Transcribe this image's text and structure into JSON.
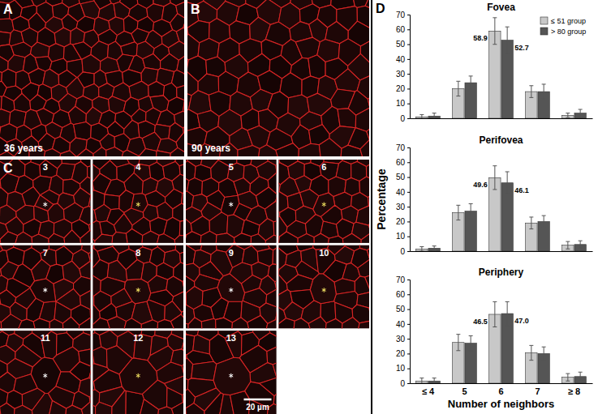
{
  "panels": {
    "A": {
      "label": "A",
      "caption": "36 years"
    },
    "B": {
      "label": "B",
      "caption": "90 years"
    },
    "C": {
      "label": "C",
      "cells": [
        3,
        4,
        5,
        6,
        7,
        8,
        9,
        10,
        11,
        12,
        13
      ],
      "scale_bar": "20 µm"
    },
    "D": {
      "label": "D"
    }
  },
  "chart_data": [
    {
      "type": "bar",
      "title": "Fovea",
      "categories": [
        "≤ 4",
        "5",
        "6",
        "7",
        "≥ 8"
      ],
      "ylim": [
        0,
        70
      ],
      "yticks": [
        0,
        10,
        20,
        30,
        40,
        50,
        60,
        70
      ],
      "grid": false,
      "tick_labels": "y",
      "legend": "upper right",
      "data_labels": true,
      "series": [
        {
          "name": "≤ 51 group",
          "color": "#c8c8c8",
          "values": [
            1,
            20,
            58.9,
            18,
            2
          ],
          "errors": [
            1.5,
            5,
            9,
            4,
            1.5
          ],
          "value_labels": [
            null,
            null,
            "58.9",
            null,
            null
          ]
        },
        {
          "name": "> 80 group",
          "color": "#555555",
          "values": [
            1.5,
            24,
            52.7,
            18,
            3.5
          ],
          "errors": [
            2,
            4.5,
            9,
            5,
            2.5
          ],
          "value_labels": [
            null,
            null,
            "52.7",
            null,
            null
          ]
        }
      ]
    },
    {
      "type": "bar",
      "title": "Perifovea",
      "ylabel": "Percentage",
      "categories": [
        "≤ 4",
        "5",
        "6",
        "7",
        "≥ 8"
      ],
      "ylim": [
        0,
        70
      ],
      "yticks": [
        0,
        10,
        20,
        30,
        40,
        50,
        60,
        70
      ],
      "grid": false,
      "tick_labels": "y",
      "data_labels": true,
      "series": [
        {
          "name": "≤ 51 group",
          "color": "#c8c8c8",
          "values": [
            1.5,
            26,
            49.6,
            19,
            4
          ],
          "errors": [
            1.5,
            5,
            8,
            4,
            2.5
          ],
          "value_labels": [
            null,
            null,
            "49.6",
            null,
            null
          ]
        },
        {
          "name": "> 80 group",
          "color": "#555555",
          "values": [
            2,
            27,
            46.1,
            20,
            4.5
          ],
          "errors": [
            1.5,
            5,
            7.5,
            4,
            2.5
          ],
          "value_labels": [
            null,
            null,
            "46.1",
            null,
            null
          ]
        }
      ]
    },
    {
      "type": "bar",
      "title": "Periphery",
      "xlabel": "Number of neighbors",
      "categories": [
        "≤ 4",
        "5",
        "6",
        "7",
        "≥ 8"
      ],
      "ylim": [
        0,
        70
      ],
      "yticks": [
        0,
        10,
        20,
        30,
        40,
        50,
        60,
        70
      ],
      "grid": false,
      "data_labels": true,
      "series": [
        {
          "name": "≤ 51 group",
          "color": "#c8c8c8",
          "values": [
            1.5,
            27.5,
            46.5,
            20.5,
            4
          ],
          "errors": [
            2,
            5.5,
            8.5,
            5,
            2.5
          ],
          "value_labels": [
            null,
            null,
            "46.5",
            null,
            null
          ]
        },
        {
          "name": "> 80 group",
          "color": "#555555",
          "values": [
            1.5,
            27,
            47.0,
            20,
            4.5
          ],
          "errors": [
            2,
            5,
            8,
            4.5,
            3
          ],
          "value_labels": [
            null,
            null,
            "47.0",
            null,
            null
          ]
        }
      ]
    }
  ]
}
